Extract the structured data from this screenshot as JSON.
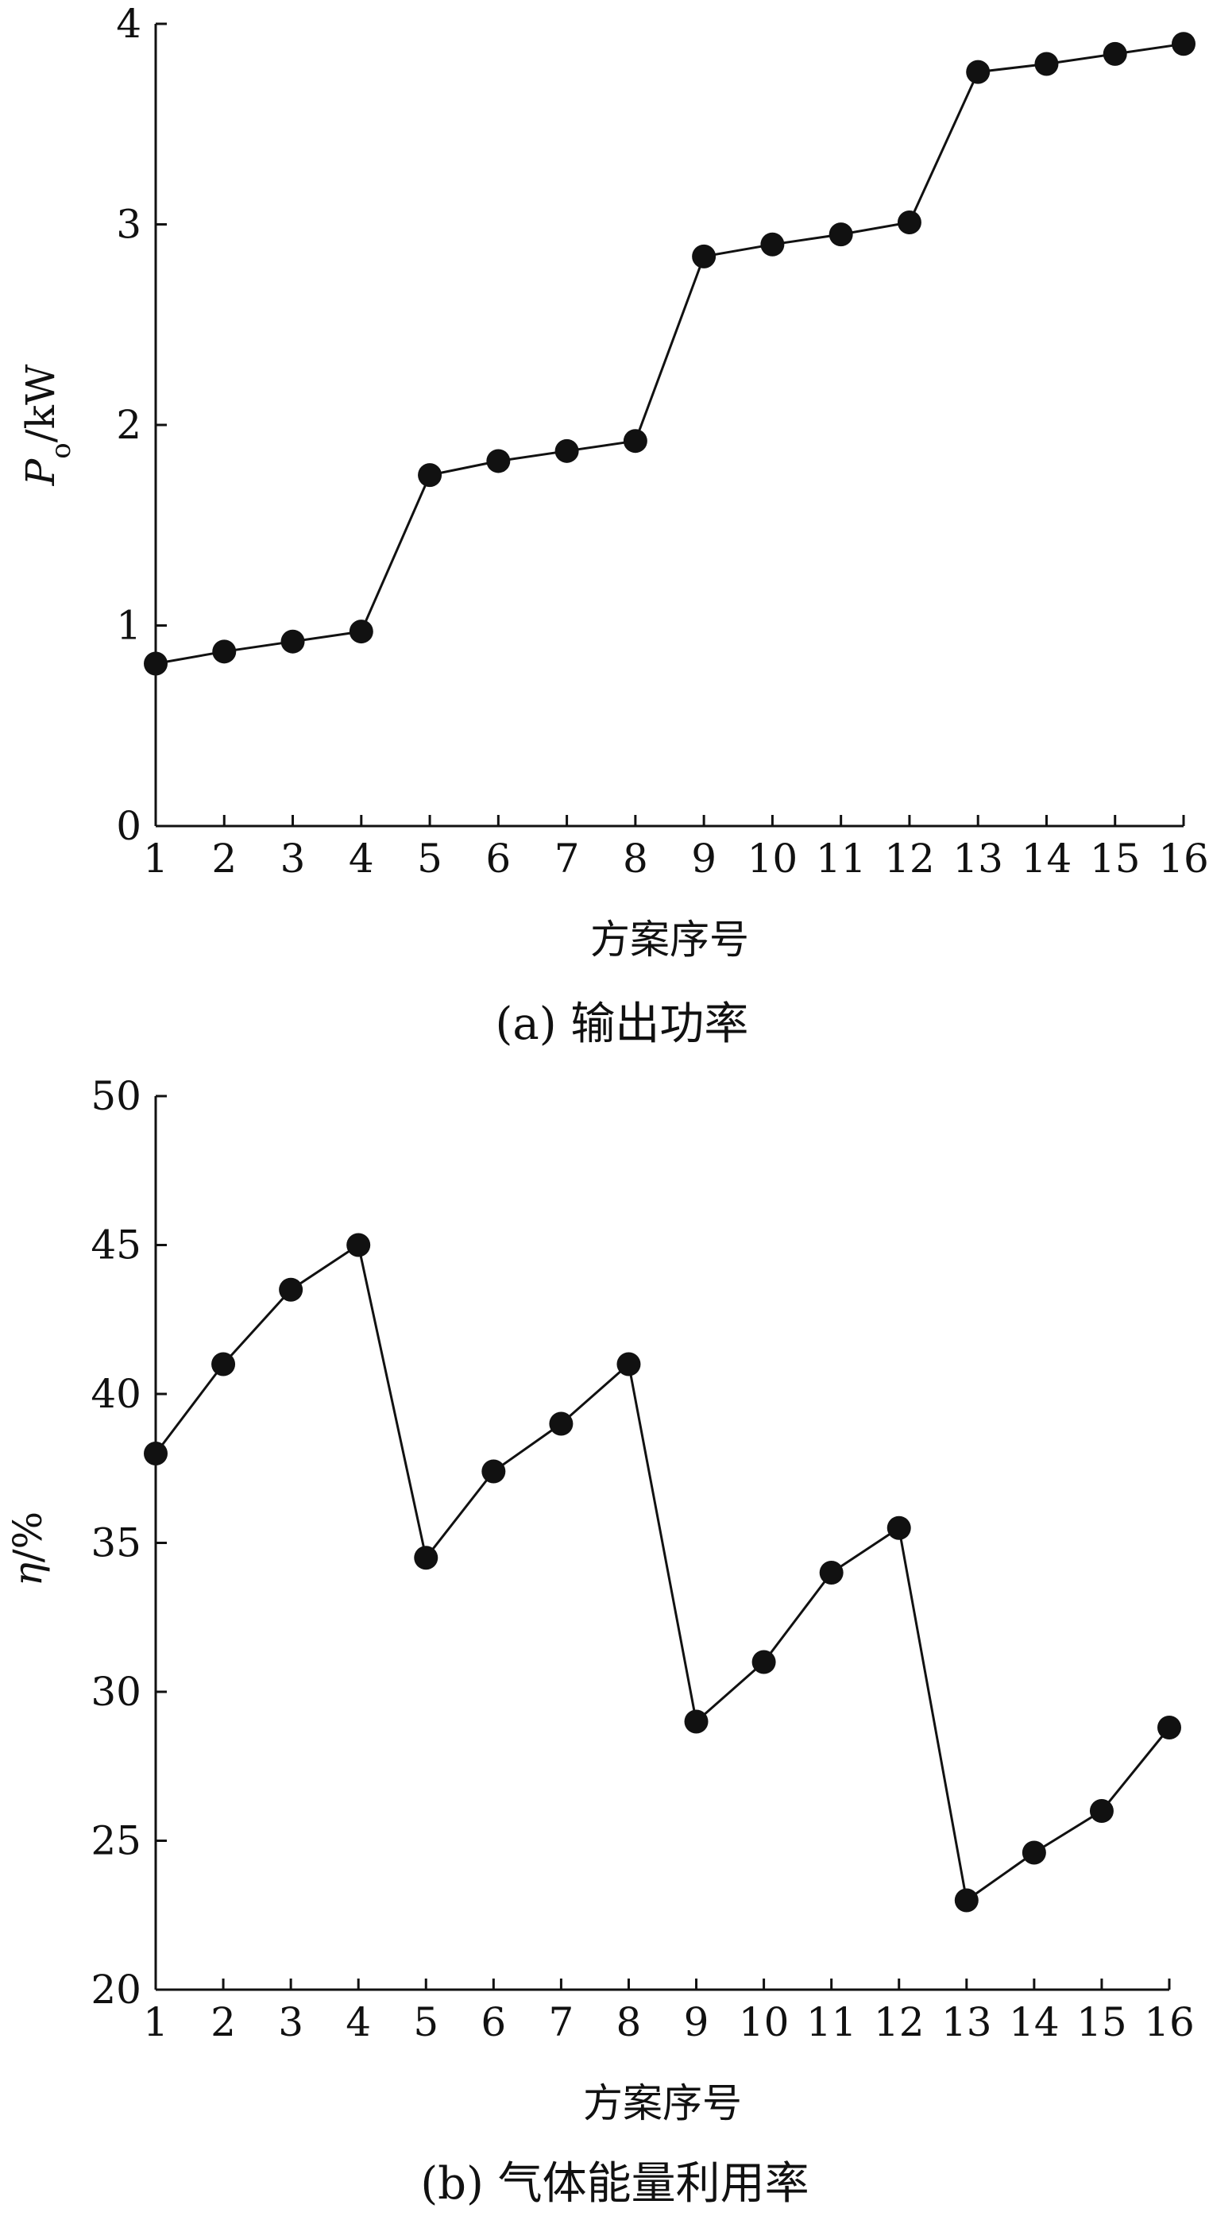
{
  "figure": {
    "panels": [
      {
        "caption": "(a) 输出功率",
        "xlabel": "方案序号",
        "ylabel_symbol": "P",
        "ylabel_subscript": "o",
        "ylabel_unit": "/kW"
      },
      {
        "caption": "(b) 气体能量利用率",
        "xlabel": "方案序号",
        "ylabel_symbol": "η",
        "ylabel_subscript": "",
        "ylabel_unit": "/%"
      }
    ]
  },
  "chart_data": [
    {
      "type": "line",
      "xlabel": "方案序号",
      "ylabel": "Po/kW",
      "x": [
        1,
        2,
        3,
        4,
        5,
        6,
        7,
        8,
        9,
        10,
        11,
        12,
        13,
        14,
        15,
        16
      ],
      "series": [
        {
          "values": [
            0.81,
            0.87,
            0.92,
            0.97,
            1.75,
            1.82,
            1.87,
            1.92,
            2.84,
            2.9,
            2.95,
            3.01,
            3.76,
            3.8,
            3.85,
            3.9
          ]
        }
      ],
      "xlim": [
        1,
        16
      ],
      "ylim": [
        0,
        4
      ],
      "xticks": [
        1,
        2,
        3,
        4,
        5,
        6,
        7,
        8,
        9,
        10,
        11,
        12,
        13,
        14,
        15,
        16
      ],
      "yticks": [
        0,
        1,
        2,
        3,
        4
      ],
      "marker": "filled-circle",
      "line_color": "#111111",
      "grid": false
    },
    {
      "type": "line",
      "xlabel": "方案序号",
      "ylabel": "η/%",
      "x": [
        1,
        2,
        3,
        4,
        5,
        6,
        7,
        8,
        9,
        10,
        11,
        12,
        13,
        14,
        15,
        16
      ],
      "series": [
        {
          "values": [
            38.0,
            41.0,
            43.5,
            45.0,
            34.5,
            37.4,
            39.0,
            41.0,
            29.0,
            31.0,
            34.0,
            35.5,
            23.0,
            24.6,
            26.0,
            28.8
          ]
        }
      ],
      "xlim": [
        1,
        16
      ],
      "ylim": [
        20,
        50
      ],
      "xticks": [
        1,
        2,
        3,
        4,
        5,
        6,
        7,
        8,
        9,
        10,
        11,
        12,
        13,
        14,
        15,
        16
      ],
      "yticks": [
        20,
        25,
        30,
        35,
        40,
        45,
        50
      ],
      "marker": "filled-circle",
      "line_color": "#111111",
      "grid": false
    }
  ]
}
